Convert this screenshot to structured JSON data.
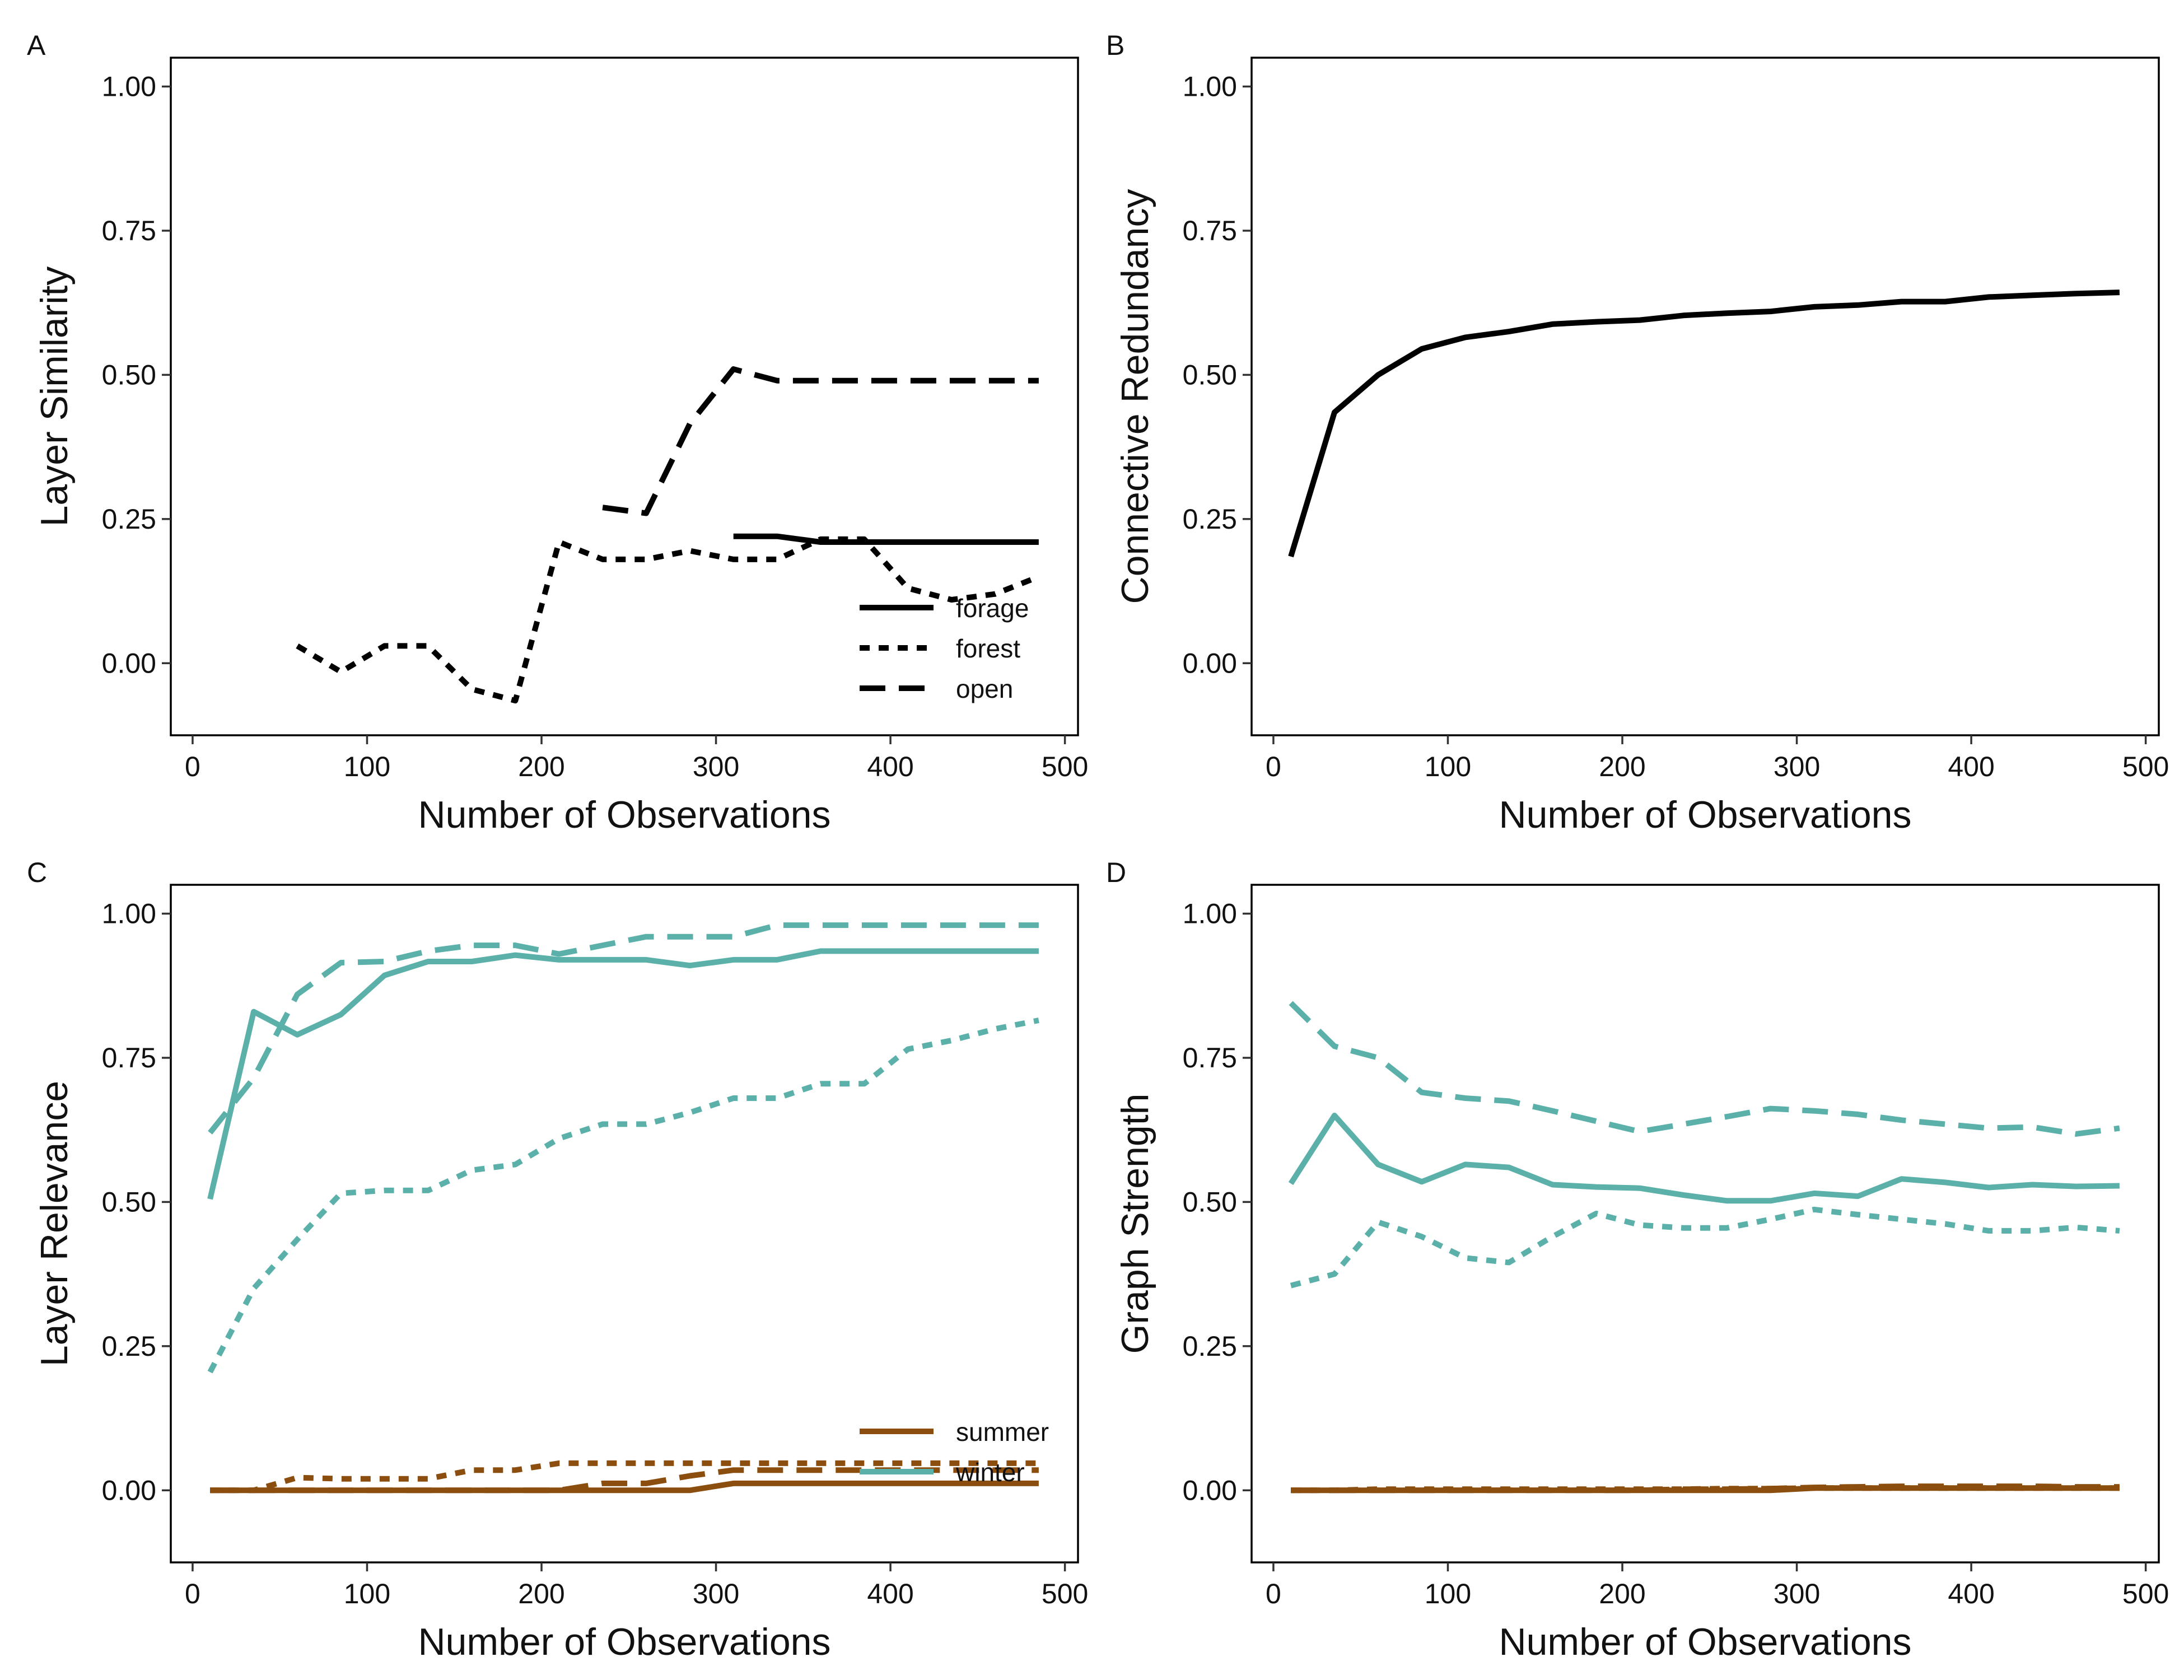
{
  "chart_data": [
    {
      "panel_label": "A",
      "type": "line",
      "xlabel": "Number of Observations",
      "ylabel": "Layer Similarity",
      "xlim": [
        -12.5,
        507.5
      ],
      "ylim": [
        -0.125,
        1.05
      ],
      "x_ticks": [
        0,
        100,
        200,
        300,
        400,
        500
      ],
      "y_ticks": [
        0.0,
        0.25,
        0.5,
        0.75,
        1.0
      ],
      "x_tick_labels": [
        "0",
        "100",
        "200",
        "300",
        "400",
        "500"
      ],
      "y_tick_labels": [
        "0.00",
        "0.25",
        "0.50",
        "0.75",
        "1.00"
      ],
      "grid": false,
      "legend_position": "bottom-right",
      "legend": [
        {
          "label": "forage",
          "dash": "solid",
          "color": "#000000"
        },
        {
          "label": "forest",
          "dash": "dotted",
          "color": "#000000"
        },
        {
          "label": "open",
          "dash": "dashed",
          "color": "#000000"
        }
      ],
      "series": [
        {
          "name": "forage",
          "color": "#000000",
          "dash": "solid",
          "x": [
            310,
            335,
            360,
            385,
            410,
            435,
            460,
            485
          ],
          "y": [
            0.22,
            0.22,
            0.21,
            0.21,
            0.21,
            0.21,
            0.21,
            0.21
          ]
        },
        {
          "name": "forest",
          "color": "#000000",
          "dash": "dotted",
          "x": [
            60,
            85,
            110,
            135,
            160,
            185,
            210,
            235,
            260,
            285,
            310,
            335,
            360,
            385,
            410,
            435,
            460,
            485
          ],
          "y": [
            0.03,
            -0.015,
            0.03,
            0.03,
            -0.045,
            -0.065,
            0.21,
            0.18,
            0.18,
            0.195,
            0.18,
            0.18,
            0.215,
            0.215,
            0.13,
            0.11,
            0.12,
            0.15
          ]
        },
        {
          "name": "open",
          "color": "#000000",
          "dash": "dashed",
          "x": [
            235,
            260,
            285,
            310,
            335,
            360,
            385,
            410,
            435,
            460,
            485
          ],
          "y": [
            0.27,
            0.26,
            0.415,
            0.51,
            0.49,
            0.49,
            0.49,
            0.49,
            0.49,
            0.49,
            0.49
          ]
        }
      ]
    },
    {
      "panel_label": "B",
      "type": "line",
      "xlabel": "Number of Observations",
      "ylabel": "Connective Redundancy",
      "xlim": [
        -12.5,
        507.5
      ],
      "ylim": [
        -0.125,
        1.05
      ],
      "x_ticks": [
        0,
        100,
        200,
        300,
        400,
        500
      ],
      "y_ticks": [
        0.0,
        0.25,
        0.5,
        0.75,
        1.0
      ],
      "x_tick_labels": [
        "0",
        "100",
        "200",
        "300",
        "400",
        "500"
      ],
      "y_tick_labels": [
        "0.00",
        "0.25",
        "0.50",
        "0.75",
        "1.00"
      ],
      "grid": false,
      "legend": [],
      "series": [
        {
          "color": "#000000",
          "dash": "solid",
          "x": [
            10,
            35,
            60,
            85,
            110,
            135,
            160,
            185,
            210,
            235,
            260,
            285,
            310,
            335,
            360,
            385,
            410,
            435,
            460,
            485
          ],
          "y": [
            0.185,
            0.435,
            0.5,
            0.545,
            0.565,
            0.575,
            0.588,
            0.592,
            0.595,
            0.603,
            0.607,
            0.61,
            0.618,
            0.621,
            0.627,
            0.627,
            0.635,
            0.638,
            0.641,
            0.643
          ]
        }
      ]
    },
    {
      "panel_label": "C",
      "type": "line",
      "xlabel": "Number of Observations",
      "ylabel": "Layer Relevance",
      "xlim": [
        -12.5,
        507.5
      ],
      "ylim": [
        -0.125,
        1.05
      ],
      "x_ticks": [
        0,
        100,
        200,
        300,
        400,
        500
      ],
      "y_ticks": [
        0.0,
        0.25,
        0.5,
        0.75,
        1.0
      ],
      "x_tick_labels": [
        "0",
        "100",
        "200",
        "300",
        "400",
        "500"
      ],
      "y_tick_labels": [
        "0.00",
        "0.25",
        "0.50",
        "0.75",
        "1.00"
      ],
      "grid": false,
      "legend_position": "bottom-right",
      "legend": [
        {
          "label": "summer",
          "dash": "solid",
          "color": "#8B4E0E"
        },
        {
          "label": "winter",
          "dash": "solid",
          "color": "#5BB1AA"
        }
      ],
      "series": [
        {
          "color": "#5BB1AA",
          "dash": "solid",
          "x": [
            10,
            35,
            60,
            85,
            110,
            135,
            160,
            185,
            210,
            235,
            260,
            285,
            310,
            335,
            360,
            385,
            410,
            435,
            460,
            485
          ],
          "y": [
            0.505,
            0.83,
            0.79,
            0.825,
            0.893,
            0.917,
            0.917,
            0.928,
            0.92,
            0.92,
            0.92,
            0.91,
            0.92,
            0.92,
            0.935,
            0.935,
            0.935,
            0.935,
            0.935,
            0.935
          ]
        },
        {
          "color": "#5BB1AA",
          "dash": "dashed",
          "x": [
            10,
            35,
            60,
            85,
            110,
            135,
            160,
            185,
            210,
            235,
            260,
            285,
            310,
            335,
            360,
            385,
            410,
            435,
            460,
            485
          ],
          "y": [
            0.62,
            0.715,
            0.86,
            0.915,
            0.917,
            0.935,
            0.945,
            0.945,
            0.93,
            0.945,
            0.96,
            0.96,
            0.96,
            0.98,
            0.98,
            0.98,
            0.98,
            0.98,
            0.98,
            0.98
          ]
        },
        {
          "color": "#5BB1AA",
          "dash": "dotted",
          "x": [
            10,
            35,
            60,
            85,
            110,
            135,
            160,
            185,
            210,
            235,
            260,
            285,
            310,
            335,
            360,
            385,
            410,
            435,
            460,
            485
          ],
          "y": [
            0.205,
            0.35,
            0.435,
            0.515,
            0.52,
            0.52,
            0.555,
            0.565,
            0.61,
            0.635,
            0.635,
            0.655,
            0.68,
            0.68,
            0.705,
            0.705,
            0.765,
            0.78,
            0.8,
            0.815
          ]
        },
        {
          "color": "#8B4E0E",
          "dash": "solid",
          "x": [
            10,
            35,
            60,
            85,
            110,
            135,
            160,
            185,
            210,
            235,
            260,
            285,
            310,
            335,
            360,
            385,
            410,
            435,
            460,
            485
          ],
          "y": [
            0,
            0,
            0,
            0,
            0,
            0,
            0,
            0,
            0,
            0,
            0,
            0,
            0.012,
            0.012,
            0.012,
            0.012,
            0.012,
            0.012,
            0.012,
            0.012
          ]
        },
        {
          "color": "#8B4E0E",
          "dash": "dashed",
          "x": [
            10,
            35,
            60,
            85,
            110,
            135,
            160,
            185,
            210,
            235,
            260,
            285,
            310,
            335,
            360,
            385,
            410,
            435,
            460,
            485
          ],
          "y": [
            0,
            0,
            0,
            0,
            0,
            0,
            0,
            0,
            0,
            0.012,
            0.012,
            0.025,
            0.035,
            0.035,
            0.035,
            0.035,
            0.035,
            0.035,
            0.035,
            0.035
          ]
        },
        {
          "color": "#8B4E0E",
          "dash": "dotted",
          "x": [
            10,
            35,
            60,
            85,
            110,
            135,
            160,
            185,
            210,
            235,
            260,
            285,
            310,
            335,
            360,
            385,
            410,
            435,
            460,
            485
          ],
          "y": [
            0,
            0,
            0.022,
            0.02,
            0.02,
            0.02,
            0.035,
            0.035,
            0.047,
            0.047,
            0.047,
            0.047,
            0.047,
            0.047,
            0.047,
            0.047,
            0.047,
            0.047,
            0.047,
            0.047
          ]
        }
      ]
    },
    {
      "panel_label": "D",
      "type": "line",
      "xlabel": "Number of Observations",
      "ylabel": "Graph Strength",
      "xlim": [
        -12.5,
        507.5
      ],
      "ylim": [
        -0.125,
        1.05
      ],
      "x_ticks": [
        0,
        100,
        200,
        300,
        400,
        500
      ],
      "y_ticks": [
        0.0,
        0.25,
        0.5,
        0.75,
        1.0
      ],
      "x_tick_labels": [
        "0",
        "100",
        "200",
        "300",
        "400",
        "500"
      ],
      "y_tick_labels": [
        "0.00",
        "0.25",
        "0.50",
        "0.75",
        "1.00"
      ],
      "grid": false,
      "legend": [],
      "series": [
        {
          "color": "#5BB1AA",
          "dash": "dashed",
          "x": [
            10,
            35,
            60,
            85,
            110,
            135,
            160,
            185,
            210,
            235,
            260,
            285,
            310,
            335,
            360,
            385,
            410,
            435,
            460,
            485
          ],
          "y": [
            0.845,
            0.77,
            0.75,
            0.69,
            0.68,
            0.675,
            0.658,
            0.64,
            0.622,
            0.635,
            0.648,
            0.662,
            0.658,
            0.652,
            0.642,
            0.635,
            0.628,
            0.63,
            0.618,
            0.628
          ]
        },
        {
          "color": "#5BB1AA",
          "dash": "solid",
          "x": [
            10,
            35,
            60,
            85,
            110,
            135,
            160,
            185,
            210,
            235,
            260,
            285,
            310,
            335,
            360,
            385,
            410,
            435,
            460,
            485
          ],
          "y": [
            0.532,
            0.65,
            0.565,
            0.535,
            0.565,
            0.56,
            0.53,
            0.526,
            0.524,
            0.512,
            0.502,
            0.502,
            0.515,
            0.51,
            0.54,
            0.534,
            0.525,
            0.53,
            0.527,
            0.528
          ]
        },
        {
          "color": "#5BB1AA",
          "dash": "dotted",
          "x": [
            10,
            35,
            60,
            85,
            110,
            135,
            160,
            185,
            210,
            235,
            260,
            285,
            310,
            335,
            360,
            385,
            410,
            435,
            460,
            485
          ],
          "y": [
            0.355,
            0.375,
            0.465,
            0.44,
            0.403,
            0.395,
            0.44,
            0.48,
            0.46,
            0.455,
            0.455,
            0.47,
            0.487,
            0.478,
            0.47,
            0.462,
            0.45,
            0.45,
            0.456,
            0.45
          ]
        },
        {
          "color": "#8B4E0E",
          "dash": "solid",
          "x": [
            10,
            35,
            60,
            85,
            110,
            135,
            160,
            185,
            210,
            235,
            260,
            285,
            310,
            335,
            360,
            385,
            410,
            435,
            460,
            485
          ],
          "y": [
            0,
            0,
            0,
            0,
            0,
            0,
            0,
            0,
            0,
            0,
            0,
            0,
            0.004,
            0.004,
            0.004,
            0.004,
            0.004,
            0.004,
            0.004,
            0.004
          ]
        },
        {
          "color": "#8B4E0E",
          "dash": "dashed",
          "x": [
            10,
            35,
            60,
            85,
            110,
            135,
            160,
            185,
            210,
            235,
            260,
            285,
            310,
            335,
            360,
            385,
            410,
            435,
            460,
            485
          ],
          "y": [
            0,
            0,
            0,
            0,
            0,
            0,
            0,
            0,
            0,
            0.002,
            0.002,
            0.003,
            0.005,
            0.006,
            0.007,
            0.007,
            0.007,
            0.007,
            0.006,
            0.006
          ]
        },
        {
          "color": "#8B4E0E",
          "dash": "dotted",
          "x": [
            10,
            35,
            60,
            85,
            110,
            135,
            160,
            185,
            210,
            235,
            260,
            285,
            310,
            335,
            360,
            385,
            410,
            435,
            460,
            485
          ],
          "y": [
            0,
            0,
            0.002,
            0.002,
            0.002,
            0.002,
            0.002,
            0.002,
            0.002,
            0.002,
            0.003,
            0.003,
            0.004,
            0.004,
            0.004,
            0.004,
            0.004,
            0.004,
            0.004,
            0.004
          ]
        }
      ]
    }
  ]
}
